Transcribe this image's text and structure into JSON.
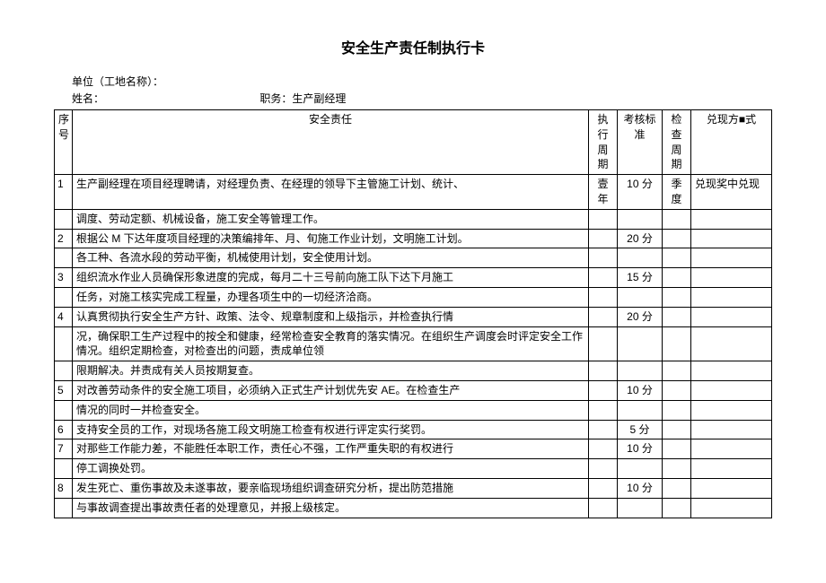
{
  "title": "安全生产责任制执行卡",
  "header": {
    "unit_label": "单位（工地名称）：",
    "name_label": "姓名：",
    "job_label": "职务：生产副经理"
  },
  "columns": {
    "seq": "序号",
    "duty": "安全责任",
    "period": "执行周期",
    "score": "考核标准",
    "check": "检查周期",
    "pay": "兑现方■式"
  },
  "rows": [
    {
      "seq": "1",
      "duty": "生产副经理在项目经理聘请，对经理负责、在经理的领导下主管施工计划、统计、",
      "period": "壹年",
      "score": "10 分",
      "check": "季度",
      "pay": "兑现奖中兑现"
    },
    {
      "seq": "",
      "duty": "调度、劳动定额、机械设备，施工安全等管理工作。",
      "period": "",
      "score": "",
      "check": "",
      "pay": ""
    },
    {
      "seq": "2",
      "duty": "根据公 M 下达年度项目经理的决策编排年、月、旬施工作业计划，文明施工计划。",
      "period": "",
      "score": "20 分",
      "check": "",
      "pay": ""
    },
    {
      "seq": "",
      "duty": "各工种、各流水段的劳动平衡，机械使用计划，安全使用计划。",
      "period": "",
      "score": "",
      "check": "",
      "pay": ""
    },
    {
      "seq": "3",
      "duty": "组织流水作业人员确保形象进度的完成，每月二十三号前向施工队下达下月施工",
      "period": "",
      "score": "15 分",
      "check": "",
      "pay": ""
    },
    {
      "seq": "",
      "duty": "任务，对施工核实完成工程量，办理各项生中的一切经济洽商。",
      "period": "",
      "score": "",
      "check": "",
      "pay": ""
    },
    {
      "seq": "4",
      "duty": "认真贯彻执行安全生产方针、政策、法令、规章制度和上级指示，并检查执行情",
      "period": "",
      "score": "20 分",
      "check": "",
      "pay": ""
    },
    {
      "seq": "",
      "duty": "况，确保职工生产过程中的按全和健康，经常检查安全教育的落实情况。在组织生产调度会时评定安全工作情况。组织定期检查，对检查出的问题，责成单位领",
      "period": "",
      "score": "",
      "check": "",
      "pay": ""
    },
    {
      "seq": "",
      "duty": "限期解决。并责成有关人员按期复查。",
      "period": "",
      "score": "",
      "check": "",
      "pay": ""
    },
    {
      "seq": "5",
      "duty": "对改善劳动条件的安全施工项目，必须纳入正式生产计划优先安 AE。在检查生产",
      "period": "",
      "score": "10 分",
      "check": "",
      "pay": ""
    },
    {
      "seq": "",
      "duty": "情况的同时一并检查安全。",
      "period": "",
      "score": "",
      "check": "",
      "pay": ""
    },
    {
      "seq": "6",
      "duty": "支持安全员的工作，对现场各施工段文明施工检查有权进行评定实行奖罚。",
      "period": "",
      "score": "5 分",
      "check": "",
      "pay": ""
    },
    {
      "seq": "7",
      "duty": "对那些工作能力差，不能胜任本职工作，责任心不强，工作严重失职的有权进行",
      "period": "",
      "score": "10 分",
      "check": "",
      "pay": ""
    },
    {
      "seq": "",
      "duty": "停工调换处罚。",
      "period": "",
      "score": "",
      "check": "",
      "pay": ""
    },
    {
      "seq": "8",
      "duty": "发生死亡、重伤事故及未遂事故，要亲临现场组织调查研究分析，提出防范措施",
      "period": "",
      "score": "10 分",
      "check": "",
      "pay": ""
    },
    {
      "seq": "",
      "duty": "与事故调查提出事故责任者的处理意见，并报上级核定。",
      "period": "",
      "score": "",
      "check": "",
      "pay": ""
    }
  ]
}
